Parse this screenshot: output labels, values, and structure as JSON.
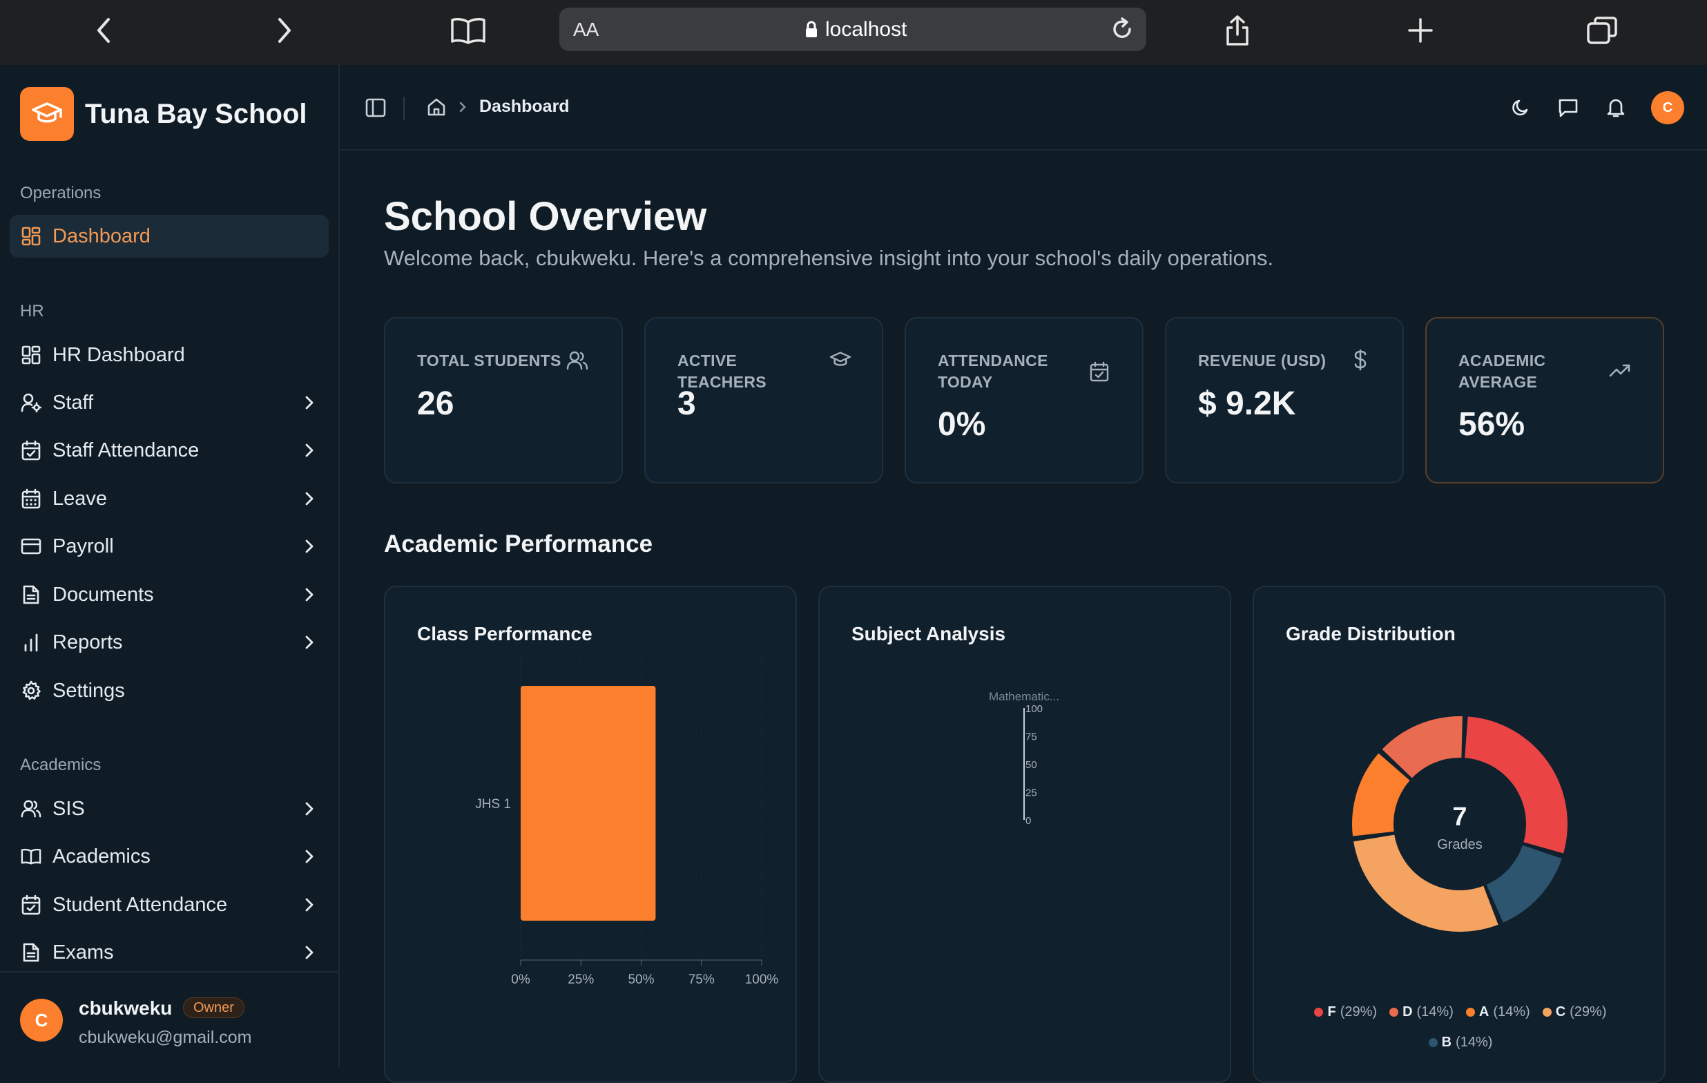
{
  "browser": {
    "aa_label": "AA",
    "url": "localhost"
  },
  "brand": {
    "name": "Tuna Bay School"
  },
  "sidebar": {
    "groups": [
      {
        "label": "Operations"
      },
      {
        "label": "HR"
      },
      {
        "label": "Academics"
      }
    ],
    "items": [
      {
        "label": "Dashboard",
        "icon": "dashboard-grid-icon",
        "active": true
      },
      {
        "label": "HR Dashboard",
        "icon": "dashboard-grid-icon"
      },
      {
        "label": "Staff",
        "icon": "user-cog-icon"
      },
      {
        "label": "Staff Attendance",
        "icon": "calendar-check-icon"
      },
      {
        "label": "Leave",
        "icon": "calendar-icon"
      },
      {
        "label": "Payroll",
        "icon": "credit-card-icon"
      },
      {
        "label": "Documents",
        "icon": "document-icon"
      },
      {
        "label": "Reports",
        "icon": "bar-chart-icon"
      },
      {
        "label": "Settings",
        "icon": "gear-icon"
      },
      {
        "label": "SIS",
        "icon": "users-icon"
      },
      {
        "label": "Academics",
        "icon": "book-icon"
      },
      {
        "label": "Student Attendance",
        "icon": "calendar-check-icon"
      },
      {
        "label": "Exams",
        "icon": "document-icon"
      }
    ]
  },
  "user": {
    "initial": "C",
    "name": "cbukweku",
    "role": "Owner",
    "email": "cbukweku@gmail.com"
  },
  "topbar": {
    "breadcrumb_current": "Dashboard",
    "avatar_initial": "C"
  },
  "page": {
    "title": "School Overview",
    "subtitle": "Welcome back, cbukweku. Here's a comprehensive insight into your school's daily operations."
  },
  "stats": [
    {
      "label": "TOTAL STUDENTS",
      "value": "26",
      "icon": "users-icon"
    },
    {
      "label": "ACTIVE TEACHERS",
      "value": "3",
      "icon": "graduation-cap-icon"
    },
    {
      "label": "ATTENDANCE TODAY",
      "value": "0%",
      "icon": "calendar-check-icon"
    },
    {
      "label": "REVENUE (USD)",
      "value": "$ 9.2K",
      "icon": "dollar-icon"
    },
    {
      "label": "ACADEMIC AVERAGE",
      "value": "56%",
      "icon": "trending-up-icon"
    }
  ],
  "section": {
    "title": "Academic Performance"
  },
  "charts": {
    "class_title": "Class Performance",
    "subject_title": "Subject Analysis",
    "grade_title": "Grade Distribution",
    "grade_center_value": "7",
    "grade_center_label": "Grades"
  },
  "colors": {
    "accent": "#fb7f2c",
    "background": "#0f1c26",
    "card": "#10202c"
  },
  "chart_data": [
    {
      "type": "bar",
      "orientation": "horizontal",
      "title": "Class Performance",
      "categories": [
        "JHS 1"
      ],
      "values": [
        56
      ],
      "xlim": [
        0,
        100
      ],
      "x_ticks": [
        "0%",
        "25%",
        "50%",
        "75%",
        "100%"
      ]
    },
    {
      "type": "bar",
      "title": "Subject Analysis",
      "categories": [
        "Mathematic..."
      ],
      "values": [
        0
      ],
      "ylim": [
        0,
        100
      ],
      "y_ticks": [
        "100",
        "75",
        "50",
        "25",
        "0"
      ]
    },
    {
      "type": "pie",
      "title": "Grade Distribution",
      "labels": [
        "F",
        "D",
        "A",
        "C",
        "B"
      ],
      "values": [
        29,
        14,
        14,
        29,
        14
      ],
      "legend_text": [
        "(29%)",
        "(14%)",
        "(14%)",
        "(29%)",
        "(14%)"
      ],
      "colors": [
        "#ea4444",
        "#e96b50",
        "#fb7f2c",
        "#f4a361",
        "#2e5570"
      ],
      "legend": "bottom"
    }
  ]
}
